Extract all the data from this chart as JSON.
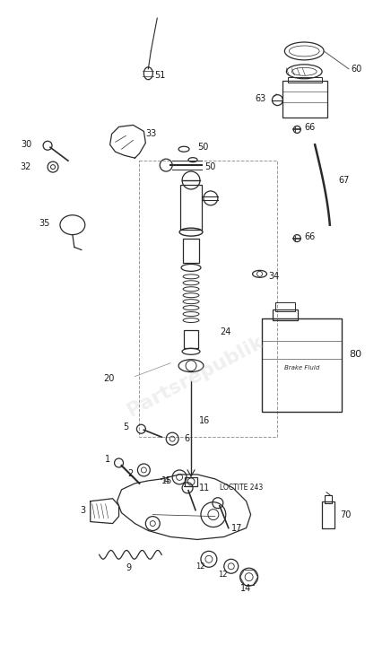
{
  "bg_color": "#ffffff",
  "figsize": [
    4.36,
    7.19
  ],
  "dpi": 100,
  "watermark": "Partsrepublik"
}
